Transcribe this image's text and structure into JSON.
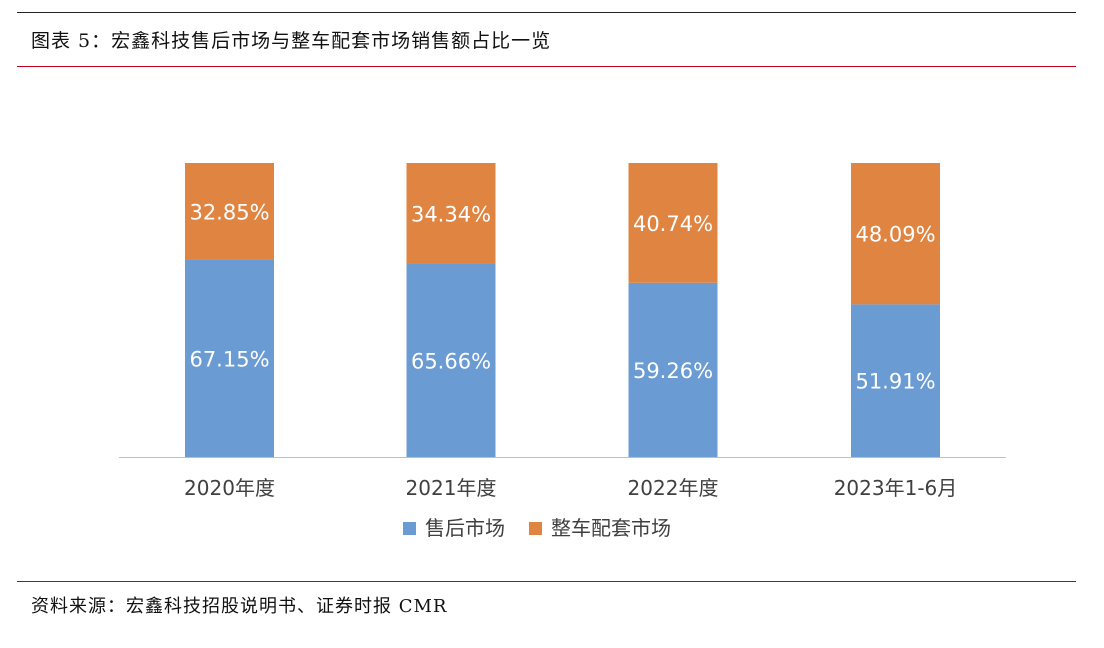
{
  "figure": {
    "title": "图表 5：宏鑫科技售后市场与整车配套市场销售额占比一览",
    "source": "资料来源：宏鑫科技招股说明书、证券时报 CMR"
  },
  "chart_data": {
    "type": "bar",
    "stacked": true,
    "percent_stacked": true,
    "categories": [
      "2020年度",
      "2021年度",
      "2022年度",
      "2023年1-6月"
    ],
    "series": [
      {
        "name": "售后市场",
        "color": "#6a9bd3",
        "values": [
          67.15,
          65.66,
          59.26,
          51.91
        ],
        "labels": [
          "67.15%",
          "65.66%",
          "59.26%",
          "51.91%"
        ]
      },
      {
        "name": "整车配套市场",
        "color": "#e08442",
        "values": [
          32.85,
          34.34,
          40.74,
          48.09
        ],
        "labels": [
          "32.85%",
          "34.34%",
          "40.74%",
          "48.09%"
        ]
      }
    ],
    "ylim": [
      0,
      100
    ],
    "grid": false,
    "legend_position": "bottom"
  }
}
